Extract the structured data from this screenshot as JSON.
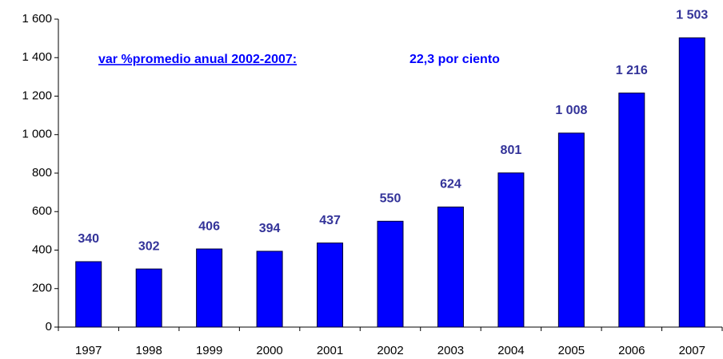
{
  "chart_data": {
    "type": "bar",
    "categories": [
      "1997",
      "1998",
      "1999",
      "2000",
      "2001",
      "2002",
      "2003",
      "2004",
      "2005",
      "2006",
      "2007"
    ],
    "values": [
      340,
      302,
      406,
      394,
      437,
      550,
      624,
      801,
      1008,
      1216,
      1503
    ],
    "value_labels": [
      "340",
      "302",
      "406",
      "394",
      "437",
      "550",
      "624",
      "801",
      "1 008",
      "1 216",
      "1 503"
    ],
    "color": "#0000ff",
    "ylim": [
      0,
      1600
    ],
    "yticks": [
      0,
      200,
      400,
      600,
      800,
      {
        "value": 1000,
        "label": "1 000"
      },
      {
        "value": 1200,
        "label": "1 200"
      },
      {
        "value": 1400,
        "label": "1 400"
      },
      {
        "value": 1600,
        "label": "1 600"
      }
    ],
    "annotations": [
      "var %promedio anual 2002-2007:",
      "22,3 por ciento"
    ]
  }
}
